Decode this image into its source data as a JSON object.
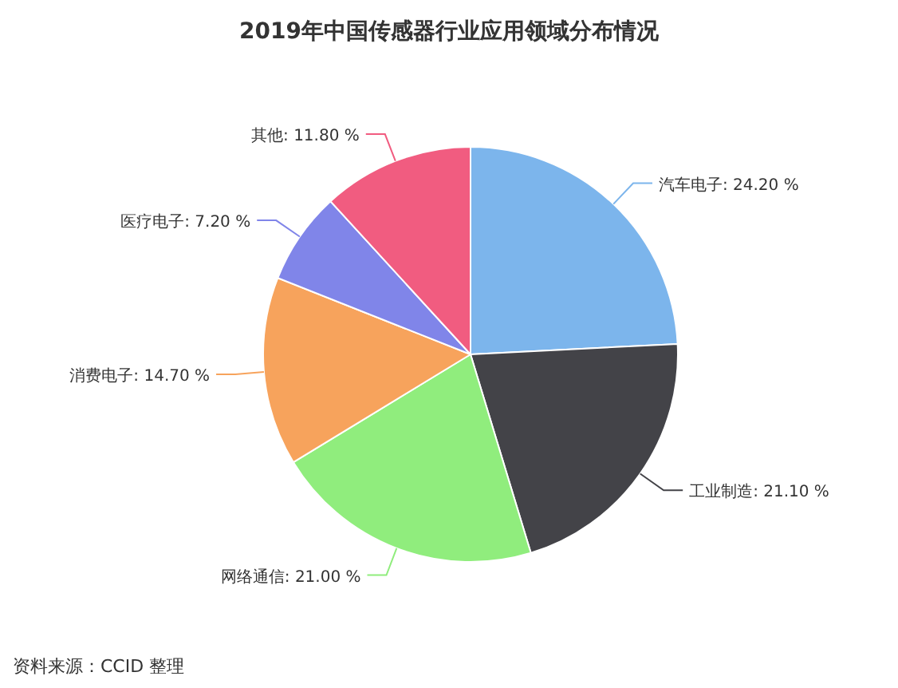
{
  "chart_data": {
    "type": "pie",
    "title": "2019年中国传感器行业应用领域分布情况",
    "categories": [
      "汽车电子",
      "工业制造",
      "网络通信",
      "消费电子",
      "医疗电子",
      "其他"
    ],
    "values": [
      24.2,
      21.1,
      21.0,
      14.7,
      7.2,
      11.8
    ],
    "value_labels": [
      "24.20 %",
      "21.10 %",
      "21.00 %",
      "14.70 %",
      "7.20 %",
      "11.80 %"
    ],
    "colors": [
      "#7cb5ec",
      "#434348",
      "#90ed7d",
      "#f7a35c",
      "#8085e9",
      "#f15c80"
    ],
    "annotations": [
      "资料来源：CCID 整理"
    ]
  }
}
